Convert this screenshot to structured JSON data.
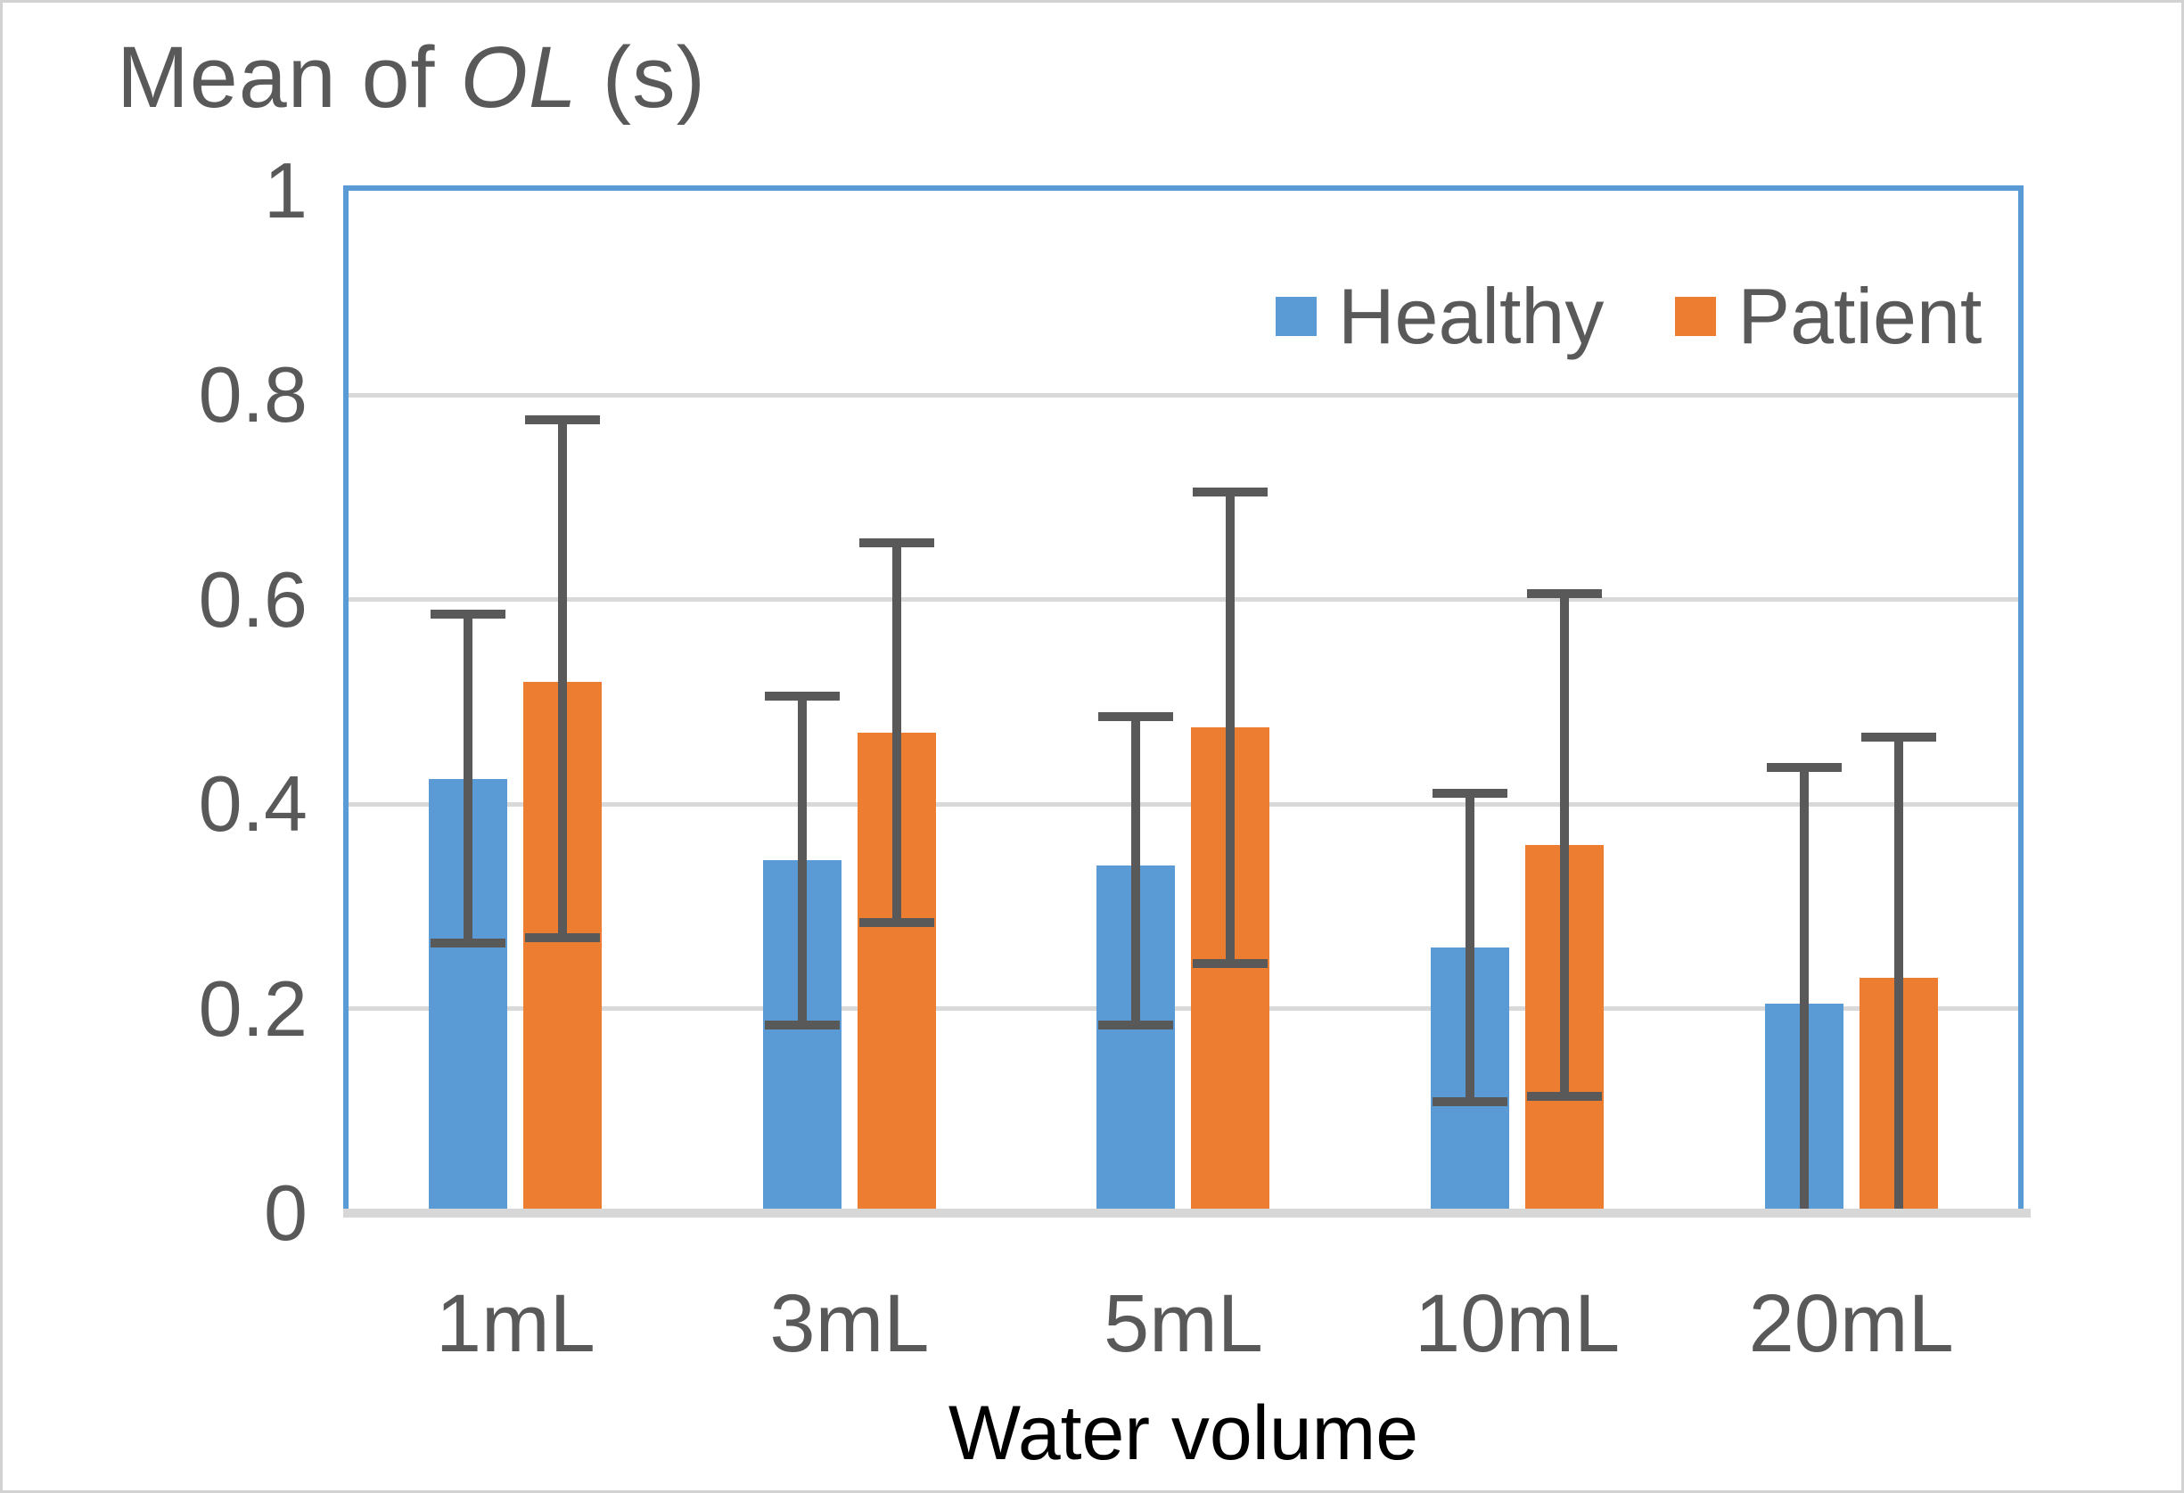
{
  "figure": {
    "title_prefix": "Mean of ",
    "title_italic": "OL",
    "title_suffix": " (s)"
  },
  "chart_data": {
    "type": "bar",
    "title": "Mean of OL (s)",
    "xlabel": "Water volume",
    "ylabel": "",
    "ylim": [
      0,
      1
    ],
    "yticks": [
      0,
      0.2,
      0.4,
      0.6,
      0.8,
      1
    ],
    "ytick_labels": [
      "0",
      "0.2",
      "0.4",
      "0.6",
      "0.8",
      "1"
    ],
    "categories": [
      "1mL",
      "3mL",
      "5mL",
      "10mL",
      "20mL"
    ],
    "grid": true,
    "error_bars": true,
    "legend_position": "top-right-inside",
    "series": [
      {
        "name": "Healthy",
        "color": "#5B9BD5",
        "values": [
          0.425,
          0.345,
          0.34,
          0.26,
          0.205
        ],
        "error_upper": [
          0.59,
          0.51,
          0.49,
          0.415,
          0.44
        ],
        "error_lower": [
          0.26,
          0.18,
          0.18,
          0.105,
          0
        ]
      },
      {
        "name": "Patient",
        "color": "#ED7D31",
        "values": [
          0.52,
          0.47,
          0.475,
          0.36,
          0.23
        ],
        "error_upper": [
          0.78,
          0.66,
          0.71,
          0.61,
          0.47
        ],
        "error_lower": [
          0.265,
          0.28,
          0.24,
          0.11,
          0
        ]
      }
    ]
  },
  "colors": {
    "plot_border": "#5B9BD5",
    "gridline": "#D9D9D9",
    "axis_line": "#D7D7D7",
    "error_bar": "#595959",
    "tick_text": "#595959",
    "axis_title_text": "#000000"
  }
}
